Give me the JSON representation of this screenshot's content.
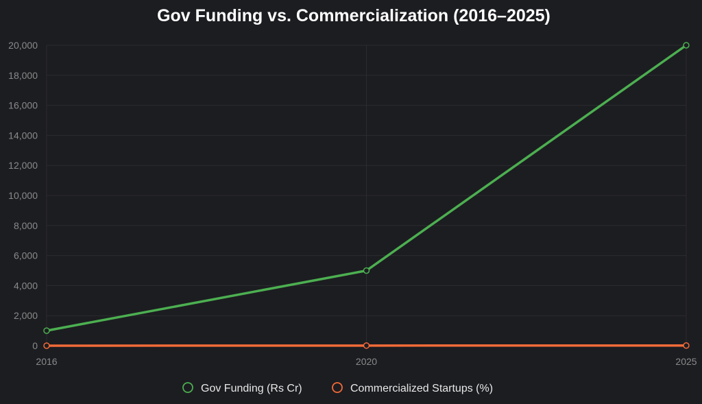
{
  "chart_data": {
    "type": "line",
    "title": "Gov Funding vs. Commercialization (2016–2025)",
    "x": [
      "2016",
      "2020",
      "2025"
    ],
    "ylim": [
      0,
      20000
    ],
    "yticks": [
      "0",
      "2,000",
      "4,000",
      "6,000",
      "8,000",
      "10,000",
      "12,000",
      "14,000",
      "16,000",
      "18,000",
      "20,000"
    ],
    "grid": true,
    "legend_position": "bottom",
    "series": [
      {
        "name": "Gov Funding (Rs Cr)",
        "color": "#4caf50",
        "values": [
          1000,
          5000,
          20000
        ]
      },
      {
        "name": "Commercialized Startups (%)",
        "color": "#f26b38",
        "values": [
          2,
          8,
          12
        ]
      }
    ]
  }
}
